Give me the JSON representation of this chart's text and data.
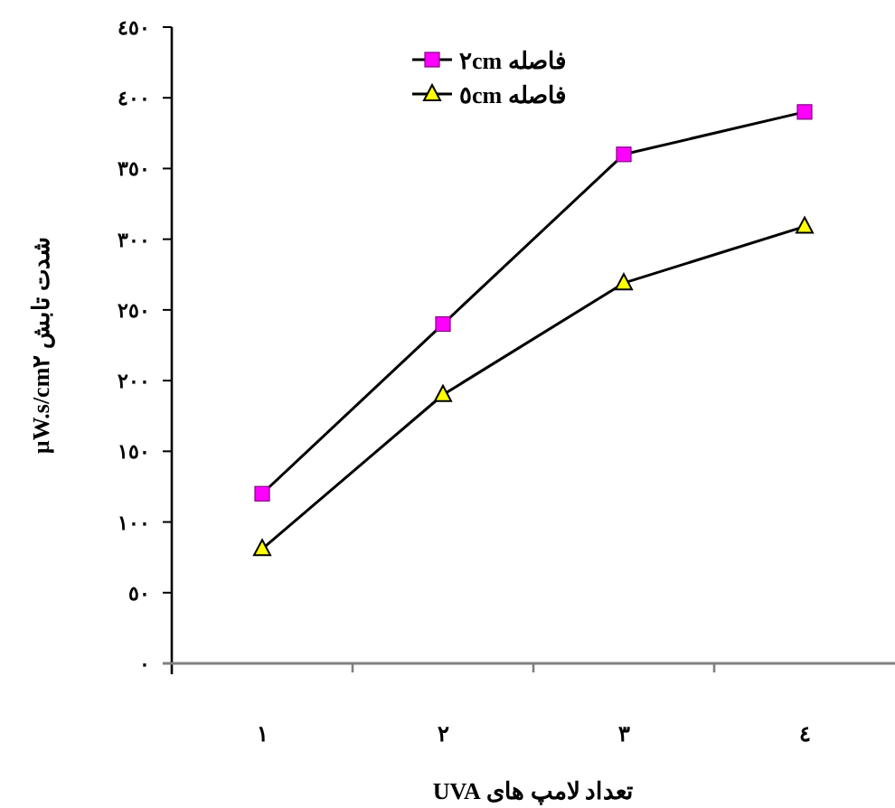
{
  "chart_data": {
    "type": "line",
    "xlabel": "تعداد لامپ های UVA",
    "ylabel": "شدت تابش µW.s/cm٢",
    "categories": [
      "١",
      "٢",
      "٣",
      "٤"
    ],
    "series": [
      {
        "name": "فاصله ٢cm",
        "color": "#ff00ff",
        "marker": "square",
        "values": [
          120,
          240,
          360,
          390
        ]
      },
      {
        "name": "فاصله ٥cm",
        "color": "#ffff00",
        "marker": "triangle",
        "values": [
          81,
          190,
          269,
          309
        ]
      }
    ],
    "ylim": [
      0,
      450
    ],
    "yticks": [
      {
        "value": 0,
        "label": "٠"
      },
      {
        "value": 50,
        "label": "٥٠"
      },
      {
        "value": 100,
        "label": "١٠٠"
      },
      {
        "value": 150,
        "label": "١٥٠"
      },
      {
        "value": 200,
        "label": "٢٠٠"
      },
      {
        "value": 250,
        "label": "٢٥٠"
      },
      {
        "value": 300,
        "label": "٣٠٠"
      },
      {
        "value": 350,
        "label": "٣٥٠"
      },
      {
        "value": 400,
        "label": "٤٠٠"
      },
      {
        "value": 450,
        "label": "٤٥٠"
      }
    ],
    "grid": false,
    "legend": "top",
    "line_style": "solid"
  }
}
